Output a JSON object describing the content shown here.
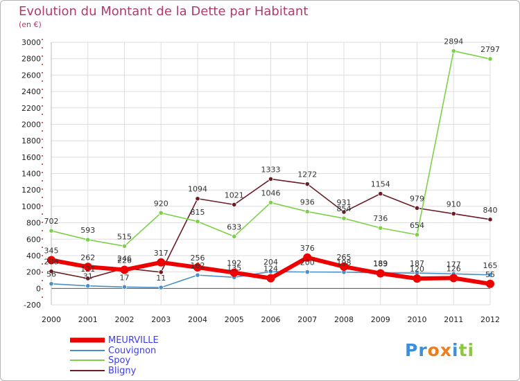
{
  "chart_data": {
    "type": "line",
    "title": "Evolution du Montant de la Dette par Habitant",
    "subtitle": "(en €)",
    "xlabel": "",
    "ylabel": "",
    "ylim": [
      -200,
      3000
    ],
    "yticks": [
      "-200",
      "0",
      "200",
      "400",
      "600",
      "800",
      "1000",
      "1200",
      "1400",
      "1600",
      "1800",
      "2000",
      "2200",
      "2400",
      "2600",
      "2800",
      "3000"
    ],
    "ytick_values": [
      -200,
      0,
      200,
      400,
      600,
      800,
      1000,
      1200,
      1400,
      1600,
      1800,
      2000,
      2200,
      2400,
      2600,
      2800,
      3000
    ],
    "categories": [
      "2000",
      "2001",
      "2002",
      "2003",
      "2004",
      "2005",
      "2006",
      "2007",
      "2008",
      "2009",
      "2010",
      "2011",
      "2012"
    ],
    "grid": true,
    "legend_position": "bottom-left",
    "series": [
      {
        "name": "MEURVILLE",
        "color": "#ee0000",
        "values": [
          345,
          262,
          226,
          317,
          256,
          192,
          124,
          376,
          265,
          183,
          120,
          126,
          55
        ],
        "labels": [
          "345",
          "262",
          "226",
          "317",
          "256",
          "192",
          "124",
          "376",
          "265",
          "183",
          "120",
          "126",
          "55"
        ]
      },
      {
        "name": "Couvignon",
        "color": "#4a90c8",
        "values": [
          56,
          31,
          17,
          11,
          162,
          135,
          204,
          200,
          198,
          189,
          187,
          177,
          165
        ],
        "labels": [
          "56",
          "31",
          "17",
          "11",
          "162",
          "135",
          "204",
          "200",
          "198",
          "189",
          "187",
          "177",
          "165"
        ]
      },
      {
        "name": "Spoy",
        "color": "#7cd148",
        "values": [
          702,
          593,
          515,
          920,
          815,
          633,
          1046,
          936,
          854,
          736,
          654,
          2894,
          2797
        ],
        "labels": [
          "702",
          "593",
          "515",
          "920",
          "815",
          "633",
          "1046",
          "936",
          "854",
          "736",
          "654",
          "2894",
          "2797"
        ]
      },
      {
        "name": "Bligny",
        "color": "#6b1c24",
        "values": [
          208,
          121,
          246,
          198,
          1094,
          1021,
          1333,
          1272,
          931,
          1154,
          979,
          910,
          840
        ],
        "labels": [
          "208",
          "121",
          "246",
          null,
          "1094",
          "1021",
          "1333",
          "1272",
          "931",
          "1154",
          "979",
          "910",
          "840"
        ]
      }
    ]
  },
  "legend": {
    "label_color": "#3c3cf0",
    "items": [
      "MEURVILLE",
      "Couvignon",
      "Spoy",
      "Bligny"
    ]
  },
  "logo": {
    "text": "Proxiti",
    "letters": [
      "P",
      "r",
      "o",
      "x",
      "i",
      "t",
      "i"
    ],
    "colors": [
      "#3c8fd8",
      "#3c8fd8",
      "#ee7d1c",
      "#ee7d1c",
      "#3c8fd8",
      "#8dc63f",
      "#8dc63f"
    ]
  }
}
